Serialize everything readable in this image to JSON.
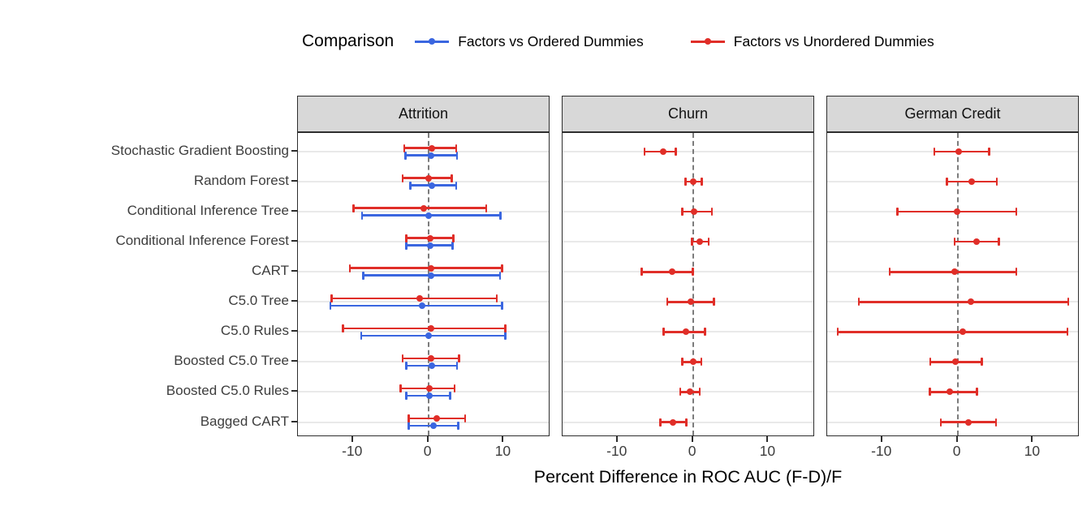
{
  "chart_data": {
    "type": "scatter",
    "subtype": "horizontal-errorbar-dotplot-faceted",
    "xlabel": "Percent Difference in ROC AUC (F-D)/F",
    "x_ticks": [
      -10,
      0,
      10
    ],
    "x_range": [
      -17.3,
      16.2
    ],
    "grid": "horizontal-major-only",
    "zero_reference_line": {
      "x": 0,
      "style": "dashed",
      "color": "#7c7c7c"
    },
    "legend": {
      "title": "Comparison",
      "position": "top",
      "entries": [
        {
          "label": "Factors vs Ordered Dummies",
          "color": "#3a66e0"
        },
        {
          "label": "Factors vs Unordered Dummies",
          "color": "#e02e28"
        }
      ]
    },
    "models": [
      "Stochastic Gradient Boosting",
      "Random Forest",
      "Conditional Inference Tree",
      "Conditional Inference Forest",
      "CART",
      "C5.0 Tree",
      "C5.0 Rules",
      "Boosted C5.0 Tree",
      "Boosted C5.0 Rules",
      "Bagged CART"
    ],
    "value_format": "[low, mid, high] percent difference",
    "facets": [
      {
        "name": "Attrition",
        "series": [
          {
            "name": "Factors vs Ordered Dummies",
            "color": "#3a66e0",
            "values": [
              [
                -3.0,
                0.4,
                3.8
              ],
              [
                -2.4,
                0.5,
                3.7
              ],
              [
                -8.8,
                0.0,
                9.6
              ],
              [
                -2.9,
                0.3,
                3.2
              ],
              [
                -8.6,
                0.4,
                9.5
              ],
              [
                -13.0,
                -0.8,
                9.8
              ],
              [
                -8.9,
                0.0,
                10.2
              ],
              [
                -2.9,
                0.5,
                3.8
              ],
              [
                -2.9,
                0.1,
                2.9
              ],
              [
                -2.6,
                0.7,
                4.0
              ]
            ]
          },
          {
            "name": "Factors vs Unordered Dummies",
            "color": "#e02e28",
            "values": [
              [
                -3.2,
                0.5,
                3.7
              ],
              [
                -3.4,
                0.0,
                3.1
              ],
              [
                -9.9,
                -0.6,
                7.7
              ],
              [
                -2.9,
                0.3,
                3.3
              ],
              [
                -10.4,
                0.4,
                9.8
              ],
              [
                -12.8,
                -1.1,
                9.1
              ],
              [
                -11.3,
                0.4,
                10.2
              ],
              [
                -3.4,
                0.4,
                4.1
              ],
              [
                -3.7,
                0.2,
                3.5
              ],
              [
                -2.6,
                1.1,
                4.9
              ]
            ]
          }
        ]
      },
      {
        "name": "Churn",
        "series": [
          {
            "name": "Factors vs Unordered Dummies",
            "color": "#e02e28",
            "values": [
              [
                -6.4,
                -3.9,
                -2.3
              ],
              [
                -1.0,
                0.0,
                1.2
              ],
              [
                -1.4,
                0.2,
                2.5
              ],
              [
                -0.1,
                0.9,
                2.1
              ],
              [
                -6.8,
                -2.8,
                0.0
              ],
              [
                -3.4,
                -0.3,
                2.8
              ],
              [
                -3.9,
                -0.9,
                1.6
              ],
              [
                -1.4,
                0.0,
                1.1
              ],
              [
                -1.7,
                -0.4,
                0.9
              ],
              [
                -4.3,
                -2.6,
                -0.9
              ]
            ]
          }
        ]
      },
      {
        "name": "German Credit",
        "series": [
          {
            "name": "Factors vs Unordered Dummies",
            "color": "#e02e28",
            "values": [
              [
                -3.1,
                0.1,
                4.2
              ],
              [
                -1.4,
                1.9,
                5.2
              ],
              [
                -8.0,
                -0.1,
                7.8
              ],
              [
                -0.4,
                2.5,
                5.5
              ],
              [
                -9.0,
                -0.4,
                7.8
              ],
              [
                -13.1,
                1.8,
                14.7
              ],
              [
                -15.9,
                0.7,
                14.6
              ],
              [
                -3.6,
                -0.3,
                3.2
              ],
              [
                -3.7,
                -1.0,
                2.6
              ],
              [
                -2.2,
                1.4,
                5.1
              ]
            ]
          }
        ]
      }
    ]
  }
}
